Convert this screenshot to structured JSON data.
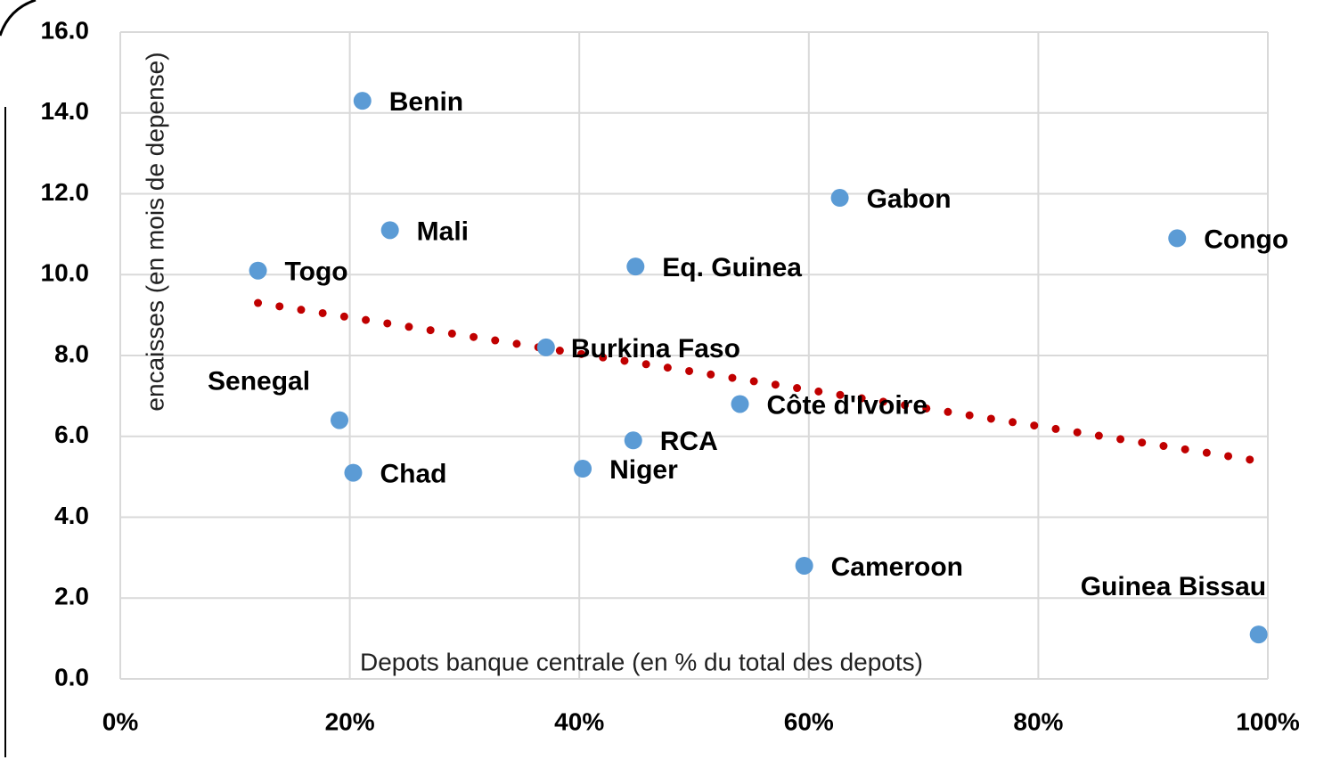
{
  "chart_data": {
    "type": "scatter",
    "x_label": "Depots banque centrale (en % du total des depots)",
    "y_label": "encaisses  (en mois de depense)",
    "categories": [
      "Benin",
      "Mali",
      "Togo",
      "Senegal",
      "Chad",
      "Burkina Faso",
      "Niger",
      "RCA",
      "Eq. Guinea",
      "Côte d'Ivoire",
      "Cameroon",
      "Gabon",
      "Congo",
      "Guinea Bissau"
    ],
    "x": [
      21.1,
      23.5,
      12.0,
      19.1,
      20.3,
      37.1,
      40.3,
      44.7,
      44.9,
      54.0,
      59.6,
      62.7,
      92.1,
      99.2
    ],
    "values": [
      14.3,
      11.1,
      10.1,
      6.4,
      5.1,
      8.2,
      5.2,
      5.9,
      10.2,
      6.8,
      2.8,
      11.9,
      10.9,
      1.1
    ],
    "color": "#5b9bd5",
    "trendline": {
      "x": [
        12,
        99
      ],
      "values": [
        9.3,
        5.4
      ],
      "color": "#c00000"
    },
    "xlim": [
      0,
      100
    ],
    "xticks": [
      {
        "value": 0,
        "label": "0%"
      },
      {
        "value": 20,
        "label": "20%"
      },
      {
        "value": 40,
        "label": "40%"
      },
      {
        "value": 60,
        "label": "60%"
      },
      {
        "value": 80,
        "label": "80%"
      },
      {
        "value": 100,
        "label": "100%"
      }
    ],
    "ylim": [
      0,
      16
    ],
    "yticks": [
      {
        "value": 0,
        "label": "0.0"
      },
      {
        "value": 2,
        "label": "2.0"
      },
      {
        "value": 4,
        "label": "4.0"
      },
      {
        "value": 6,
        "label": "6.0"
      },
      {
        "value": 8,
        "label": "8.0"
      },
      {
        "value": 10,
        "label": "10.0"
      },
      {
        "value": 12,
        "label": "12.0"
      },
      {
        "value": 14,
        "label": "14.0"
      },
      {
        "value": 16,
        "label": "16.0"
      }
    ],
    "grid": true
  }
}
